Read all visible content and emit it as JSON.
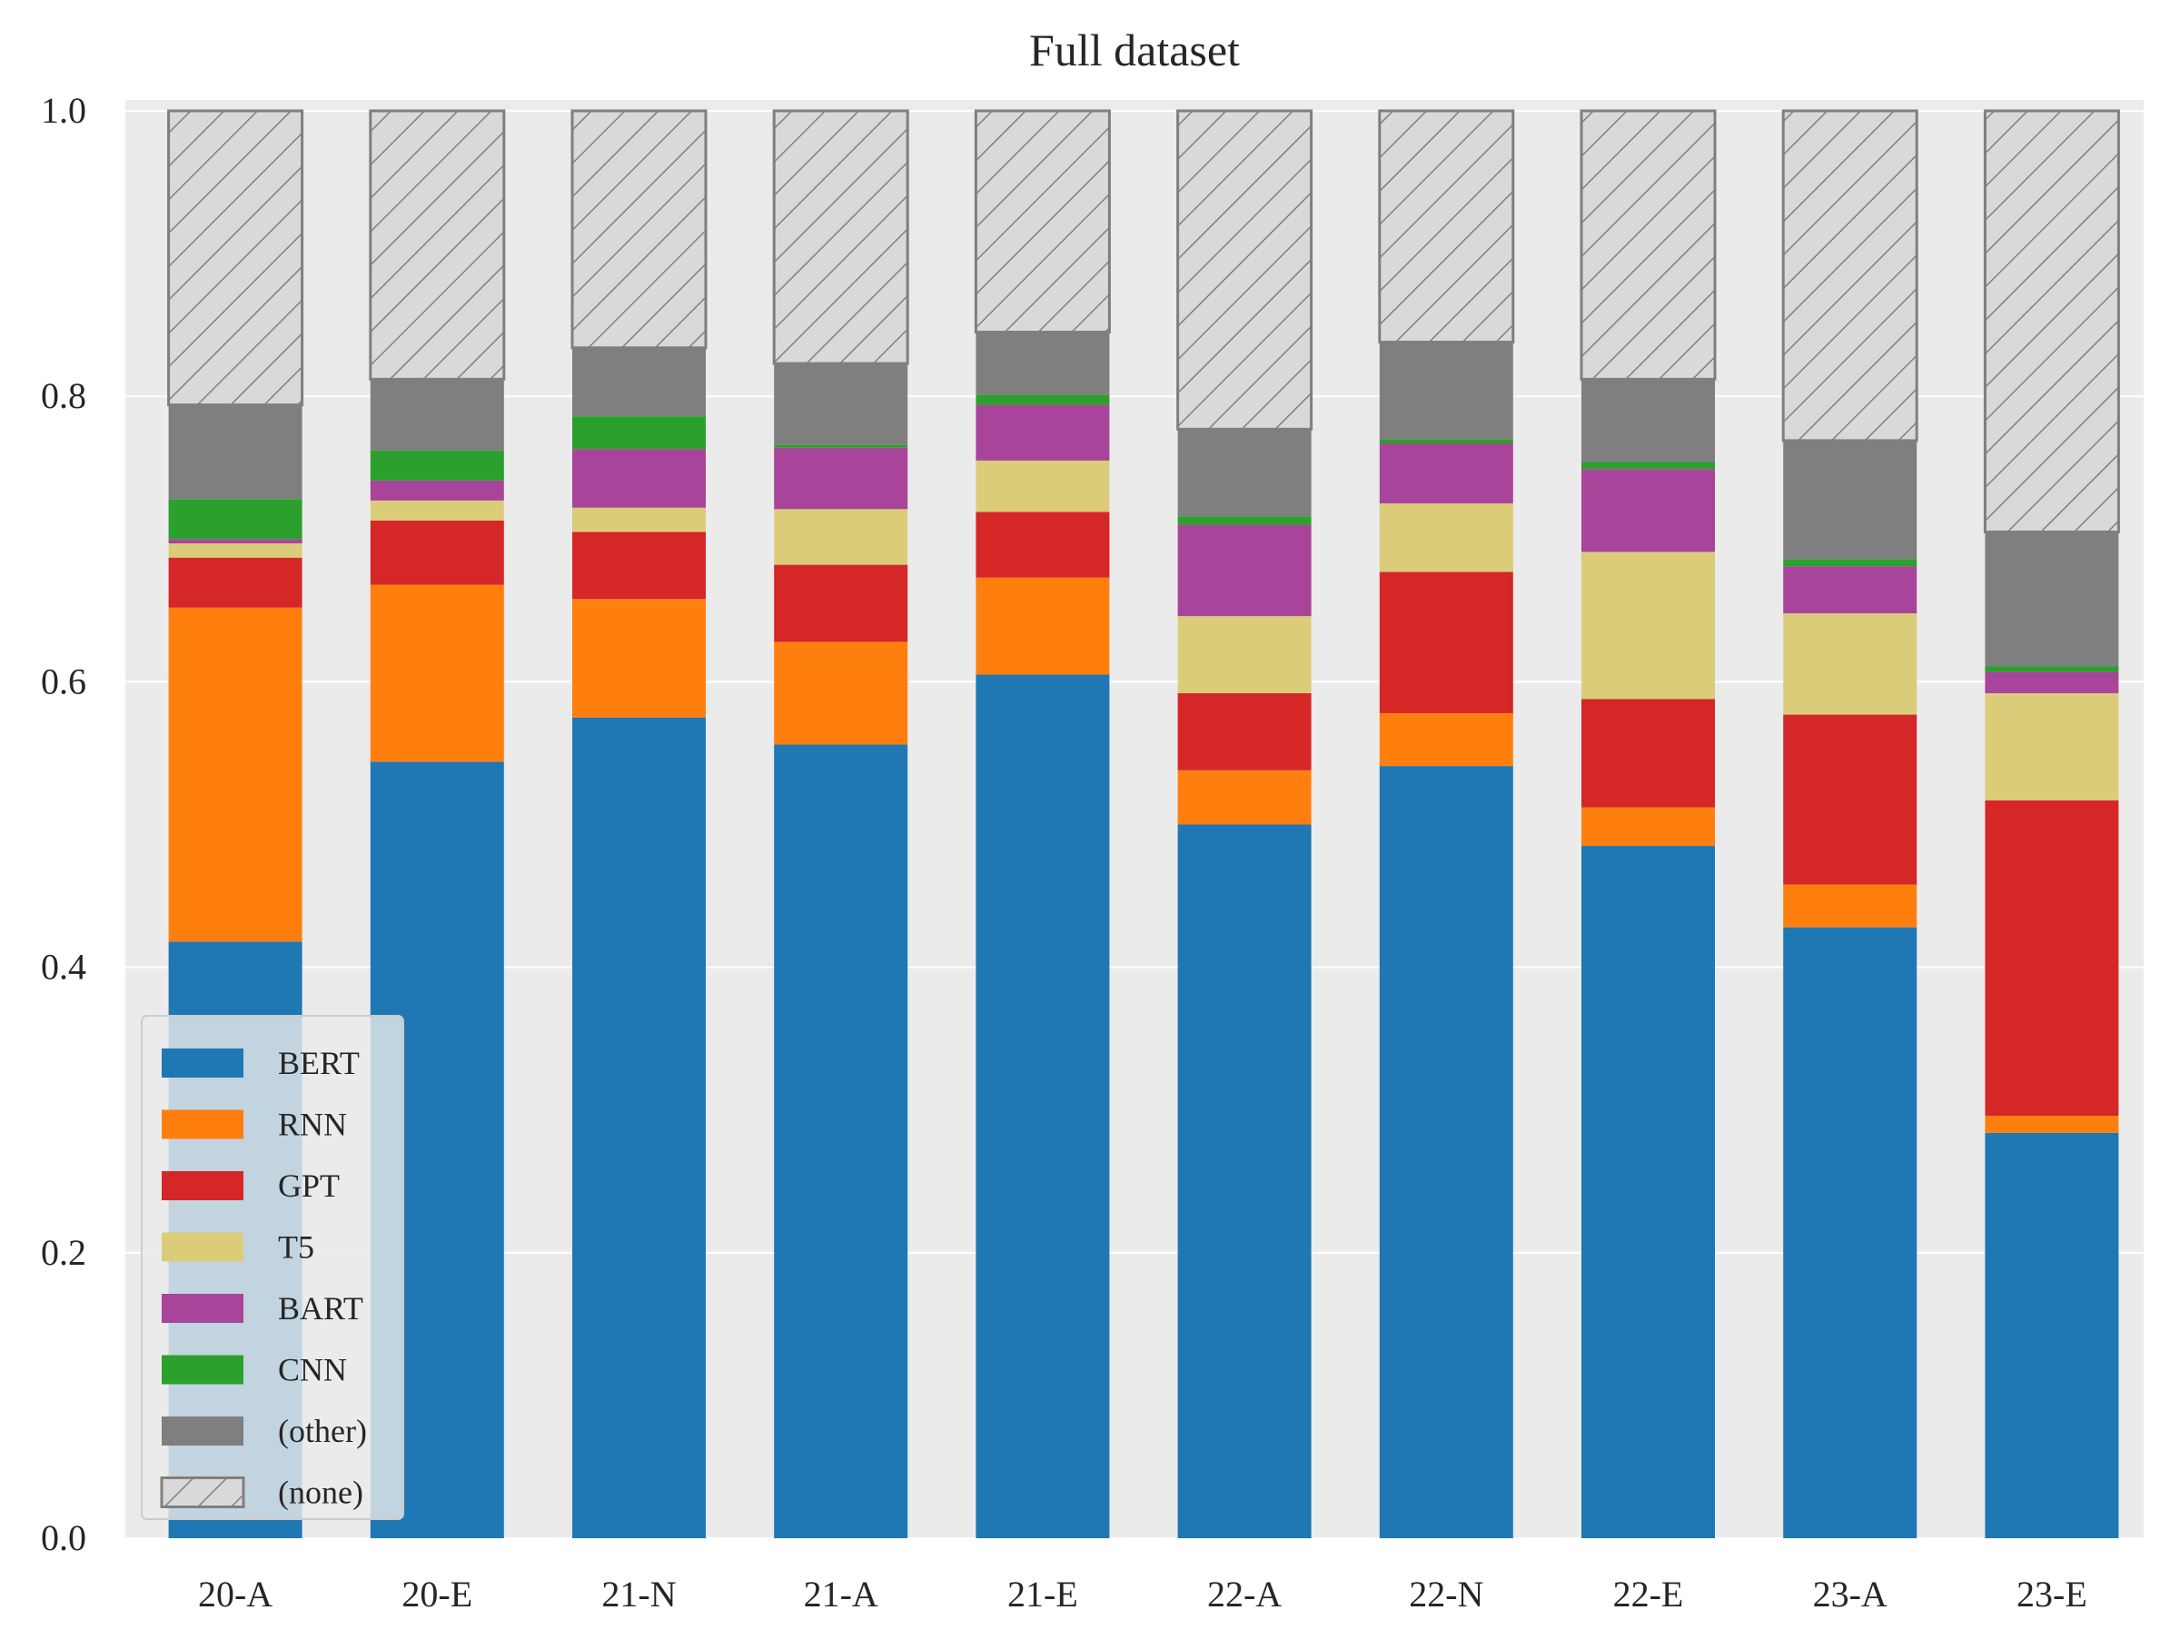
{
  "chart_data": {
    "type": "bar",
    "stacked": true,
    "title": "Full dataset",
    "xlabel": "",
    "ylabel": "",
    "ylim": [
      0,
      1.0
    ],
    "yticks": [
      "0.0",
      "0.2",
      "0.4",
      "0.6",
      "0.8",
      "1.0"
    ],
    "grid": true,
    "legend_position": "lower-left",
    "categories": [
      "20-A",
      "20-E",
      "21-N",
      "21-A",
      "21-E",
      "22-A",
      "22-N",
      "22-E",
      "23-A",
      "23-E"
    ],
    "series": [
      {
        "name": "BERT",
        "color": "#1f77b4",
        "values": [
          0.418,
          0.544,
          0.575,
          0.556,
          0.605,
          0.5,
          0.541,
          0.485,
          0.428,
          0.284
        ]
      },
      {
        "name": "RNN",
        "color": "#ff7f0e",
        "values": [
          0.234,
          0.124,
          0.083,
          0.072,
          0.068,
          0.038,
          0.037,
          0.027,
          0.03,
          0.012
        ]
      },
      {
        "name": "GPT",
        "color": "#d62728",
        "values": [
          0.035,
          0.045,
          0.047,
          0.054,
          0.046,
          0.054,
          0.099,
          0.076,
          0.119,
          0.221
        ]
      },
      {
        "name": "T5",
        "color": "#dbcc7a",
        "values": [
          0.01,
          0.014,
          0.017,
          0.039,
          0.036,
          0.054,
          0.048,
          0.103,
          0.071,
          0.075
        ]
      },
      {
        "name": "BART",
        "color": "#a84499",
        "values": [
          0.003,
          0.014,
          0.041,
          0.043,
          0.039,
          0.064,
          0.042,
          0.058,
          0.033,
          0.015
        ]
      },
      {
        "name": "CNN",
        "color": "#2ca02c",
        "values": [
          0.028,
          0.021,
          0.023,
          0.002,
          0.007,
          0.006,
          0.003,
          0.005,
          0.005,
          0.004
        ]
      },
      {
        "name": "(other)",
        "color": "#7f7f7f",
        "values": [
          0.066,
          0.05,
          0.048,
          0.057,
          0.044,
          0.061,
          0.068,
          0.058,
          0.083,
          0.094
        ]
      },
      {
        "name": "(none)",
        "color": "#d9d9d9",
        "hatch": true,
        "values": [
          0.206,
          0.188,
          0.166,
          0.177,
          0.155,
          0.223,
          0.162,
          0.188,
          0.231,
          0.295
        ]
      }
    ]
  }
}
